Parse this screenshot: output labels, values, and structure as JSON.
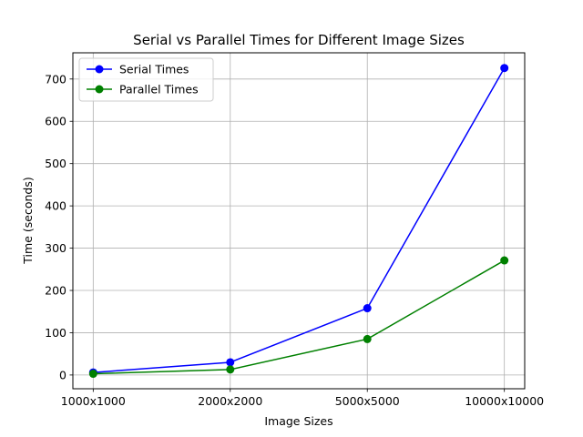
{
  "chart_data": {
    "type": "line",
    "title": "Serial vs Parallel Times for Different Image Sizes",
    "xlabel": "Image Sizes",
    "ylabel": "Time (seconds)",
    "categories": [
      "1000x1000",
      "2000x2000",
      "5000x5000",
      "10000x10000"
    ],
    "series": [
      {
        "name": "Serial Times",
        "color": "#0000ff",
        "marker": "circle",
        "values": [
          6,
          30,
          158,
          726
        ]
      },
      {
        "name": "Parallel Times",
        "color": "#008000",
        "marker": "circle",
        "values": [
          3,
          13,
          85,
          271
        ]
      }
    ],
    "ylim": [
      -32.5,
      762
    ],
    "yticks": [
      0,
      100,
      200,
      300,
      400,
      500,
      600,
      700
    ],
    "grid": true,
    "legend": "upper-left"
  }
}
